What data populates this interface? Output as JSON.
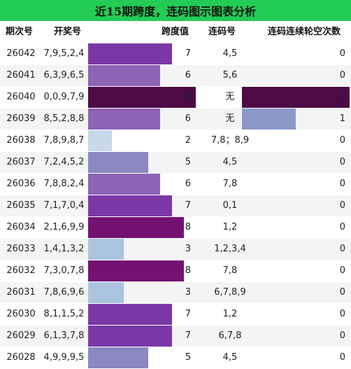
{
  "title": "近15期跨度，连码图示图表分析",
  "columns": {
    "issue": "期次号",
    "draw": "开奖号",
    "span": "跨度值",
    "lianma": "连码号",
    "miss": "连码连续轮空次数"
  },
  "span_max": 9,
  "miss_max": 2,
  "span_colors": {
    "2": "#c8d9ea",
    "3": "#aac4df",
    "5": "#8c88c2",
    "6": "#8d63b5",
    "7": "#7a38a6",
    "8": "#741274",
    "9": "#4d0a46"
  },
  "miss_colors": {
    "1": "#8b98c9",
    "2": "#4d0a46"
  },
  "rows": [
    {
      "issue": "26042",
      "draw": "7,9,5,2,4",
      "span": 7,
      "lianma": "4,5",
      "miss": 0
    },
    {
      "issue": "26041",
      "draw": "6,3,9,6,5",
      "span": 6,
      "lianma": "5,6",
      "miss": 0
    },
    {
      "issue": "26040",
      "draw": "0,0,9,7,9",
      "span": 9,
      "lianma": "无",
      "miss": 2
    },
    {
      "issue": "26039",
      "draw": "8,5,2,8,8",
      "span": 6,
      "lianma": "无",
      "miss": 1
    },
    {
      "issue": "26038",
      "draw": "7,8,9,8,7",
      "span": 2,
      "lianma": "7,8；8,9",
      "miss": 0
    },
    {
      "issue": "26037",
      "draw": "7,2,4,5,2",
      "span": 5,
      "lianma": "4,5",
      "miss": 0
    },
    {
      "issue": "26036",
      "draw": "7,8,8,2,4",
      "span": 6,
      "lianma": "7,8",
      "miss": 0
    },
    {
      "issue": "26035",
      "draw": "7,1,7,0,4",
      "span": 7,
      "lianma": "0,1",
      "miss": 0
    },
    {
      "issue": "26034",
      "draw": "2,1,6,9,9",
      "span": 8,
      "lianma": "1,2",
      "miss": 0
    },
    {
      "issue": "26033",
      "draw": "1,4,1,3,2",
      "span": 3,
      "lianma": "1,2,3,4",
      "miss": 0
    },
    {
      "issue": "26032",
      "draw": "7,3,0,7,8",
      "span": 8,
      "lianma": "7,8",
      "miss": 0
    },
    {
      "issue": "26031",
      "draw": "7,8,6,9,6",
      "span": 3,
      "lianma": "6,7,8,9",
      "miss": 0
    },
    {
      "issue": "26030",
      "draw": "8,1,1,5,2",
      "span": 7,
      "lianma": "1,2",
      "miss": 0
    },
    {
      "issue": "26029",
      "draw": "6,1,3,7,8",
      "span": 7,
      "lianma": "6,7,8",
      "miss": 0
    },
    {
      "issue": "26028",
      "draw": "4,9,9,9,5",
      "span": 5,
      "lianma": "4,5",
      "miss": 0
    }
  ]
}
